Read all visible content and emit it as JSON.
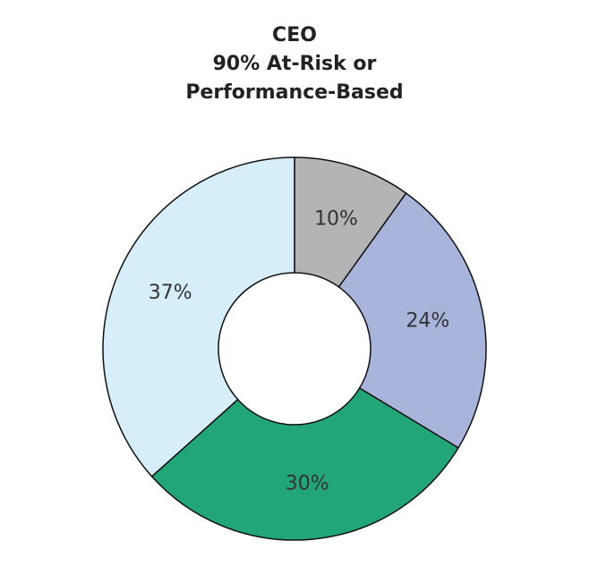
{
  "chart_data": {
    "type": "pie",
    "title": [
      "CEO",
      "90% At-Risk or",
      "Performance-Based"
    ],
    "values": [
      10,
      24,
      30,
      37
    ],
    "value_labels": [
      "10%",
      "24%",
      "30%",
      "37%"
    ],
    "colors": [
      "#b3b4b6",
      "#a9b4dd",
      "#22a678",
      "#d6edfa"
    ],
    "donut": true
  }
}
